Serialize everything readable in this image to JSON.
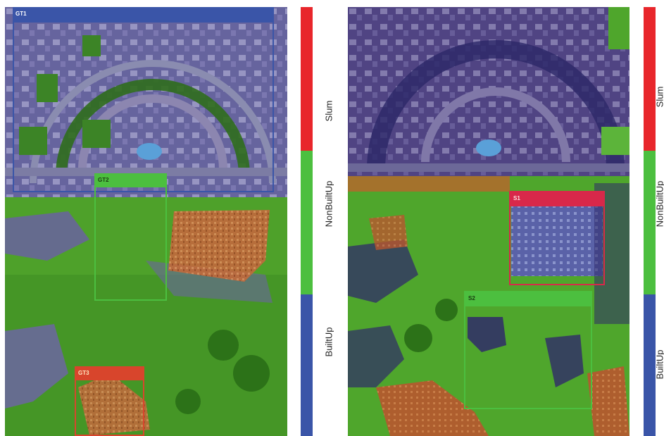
{
  "legend": {
    "classes": [
      {
        "label": "Slum",
        "color": "#e8262b"
      },
      {
        "label": "NonBuiltUp",
        "color": "#4cbf3f"
      },
      {
        "label": "BuiltUp",
        "color": "#3a55a8"
      }
    ]
  },
  "left_panel": {
    "boxes": [
      {
        "tag": "GT1",
        "color": "#3a55a8"
      },
      {
        "tag": "GT2",
        "color": "#4cbf3f"
      },
      {
        "tag": "GT3",
        "color": "#d8452c"
      }
    ]
  },
  "right_panel": {
    "boxes": [
      {
        "tag": "S1",
        "color": "#d8284a"
      },
      {
        "tag": "S2",
        "color": "#4cbf3f"
      }
    ]
  },
  "colors": {
    "builtup_overlay": "#4a4fa0",
    "nonbuiltup_overlay": "#3fae2c",
    "slum_overlay": "#c8562c"
  }
}
